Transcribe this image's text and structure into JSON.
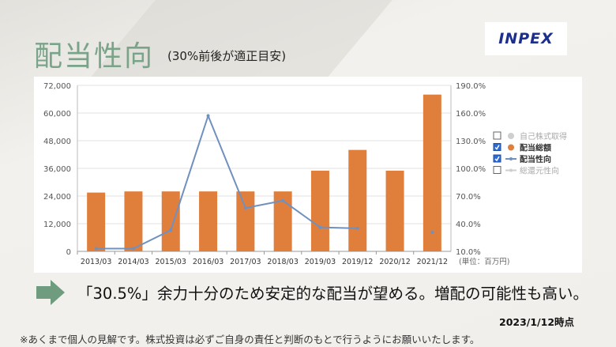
{
  "slide": {
    "title": "配当性向",
    "subtitle": "(30%前後が適正目安)",
    "logo_text": "INPEX",
    "message": "「30.5%」余力十分のため安定的な配当が望める。増配の可能性も高い。",
    "date": "2023/1/12時点",
    "disclaimer": "※あくまで個人の見解です。株式投資は必ずご自身の責任と判断のもとで行うようにお願いいたします。"
  },
  "colors": {
    "title": "#7aa48a",
    "bar": "#e07f3c",
    "line": "#7090c0",
    "arrow": "#6f9b7f",
    "logo": "#1d2f8c"
  },
  "chart_data": {
    "type": "bar",
    "categories": [
      "2013/03",
      "2014/03",
      "2015/03",
      "2016/03",
      "2017/03",
      "2018/03",
      "2019/03",
      "2019/12",
      "2020/12",
      "2021/12"
    ],
    "series": [
      {
        "name": "配当総額",
        "type": "bar",
        "axis": "left",
        "values": [
          25500,
          26000,
          26000,
          26000,
          26000,
          26000,
          35000,
          44000,
          35000,
          68000
        ]
      },
      {
        "name": "配当性向",
        "type": "line",
        "axis": "right",
        "values": [
          13.0,
          13.0,
          33.0,
          157.0,
          57.0,
          65.0,
          36.0,
          35.0,
          null,
          30.5
        ]
      }
    ],
    "y_left": {
      "ticks": [
        "0",
        "12,000",
        "24,000",
        "36,000",
        "48,000",
        "60,000",
        "72,000"
      ],
      "min": 0,
      "max": 72000
    },
    "y_right": {
      "ticks": [
        "10.0%",
        "40.0%",
        "70.0%",
        "100.0%",
        "130.0%",
        "160.0%",
        "190.0%"
      ],
      "min": 10,
      "max": 190
    },
    "unit_note": "(単位：百万円)",
    "legend": [
      {
        "label": "自己株式取得",
        "checked": false,
        "marker": "dot",
        "color": "#cfcfcf"
      },
      {
        "label": "配当総額",
        "checked": true,
        "marker": "dot",
        "color": "#e07f3c"
      },
      {
        "label": "配当性向",
        "checked": true,
        "marker": "line",
        "color": "#7090c0"
      },
      {
        "label": "総還元性向",
        "checked": false,
        "marker": "line",
        "color": "#cfcfcf"
      }
    ],
    "legend_position": "right",
    "grid": true
  }
}
